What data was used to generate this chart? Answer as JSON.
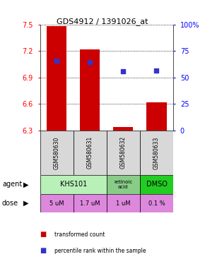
{
  "title": "GDS4912 / 1391026_at",
  "samples": [
    "GSM580630",
    "GSM580631",
    "GSM580632",
    "GSM580633"
  ],
  "bar_tops": [
    7.48,
    7.22,
    6.34,
    6.62
  ],
  "percentile_values": [
    7.09,
    7.07,
    6.97,
    6.98
  ],
  "ylim": [
    6.3,
    7.5
  ],
  "yticks": [
    6.3,
    6.6,
    6.9,
    7.2,
    7.5
  ],
  "right_yticks": [
    0,
    25,
    50,
    75,
    100
  ],
  "bar_color": "#cc0000",
  "dot_color": "#3333cc",
  "agent_colors": [
    "#b8f0b8",
    "#b8f0b8",
    "#88cc88",
    "#22cc22"
  ],
  "agent_labels": [
    "KHS101",
    "",
    "retinoic\nacid",
    "DMSO"
  ],
  "dose_labels": [
    "5 uM",
    "1.7 uM",
    "1 uM",
    "0.1 %"
  ],
  "dose_color": "#dd88dd",
  "sample_bg": "#d8d8d8",
  "legend_red": "transformed count",
  "legend_blue": "percentile rank within the sample",
  "agent_label": "agent",
  "dose_label": "dose"
}
